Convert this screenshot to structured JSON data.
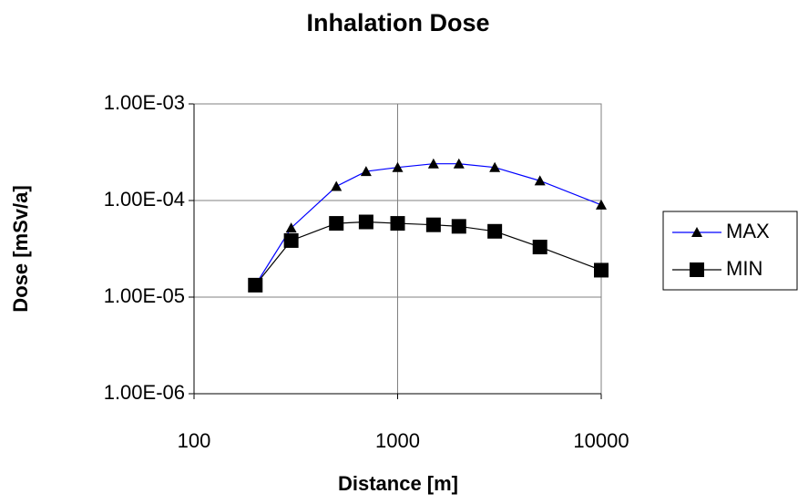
{
  "chart_data": {
    "type": "line",
    "title": "Inhalation Dose",
    "xlabel": "Distance [m]",
    "ylabel": "Dose [mSv/a]",
    "x": [
      200,
      300,
      500,
      700,
      1000,
      1500,
      2000,
      3000,
      5000,
      10000
    ],
    "series": [
      {
        "name": "MAX",
        "color": "#0000ff",
        "marker": "triangle",
        "marker_color": "#000000",
        "values": [
          1.33e-05,
          5.2e-05,
          0.00014,
          0.0002,
          0.00022,
          0.00024,
          0.00024,
          0.00022,
          0.00016,
          9e-05
        ]
      },
      {
        "name": "MIN",
        "color": "#000000",
        "marker": "square",
        "marker_color": "#000000",
        "values": [
          1.33e-05,
          3.85e-05,
          5.8e-05,
          6e-05,
          5.8e-05,
          5.6e-05,
          5.4e-05,
          4.8e-05,
          3.3e-05,
          1.9e-05
        ]
      }
    ],
    "xscale": "log",
    "yscale": "log",
    "xlim": [
      100,
      10000
    ],
    "xticks": [
      100,
      1000,
      10000
    ],
    "ylim": [
      1e-06,
      0.001
    ],
    "yticks": [
      {
        "value": 1e-06,
        "label": "1.00E-06"
      },
      {
        "value": 1e-05,
        "label": "1.00E-05"
      },
      {
        "value": 0.0001,
        "label": "1.00E-04"
      },
      {
        "value": 0.001,
        "label": "1.00E-03"
      }
    ],
    "grid": true,
    "legend": "right"
  }
}
